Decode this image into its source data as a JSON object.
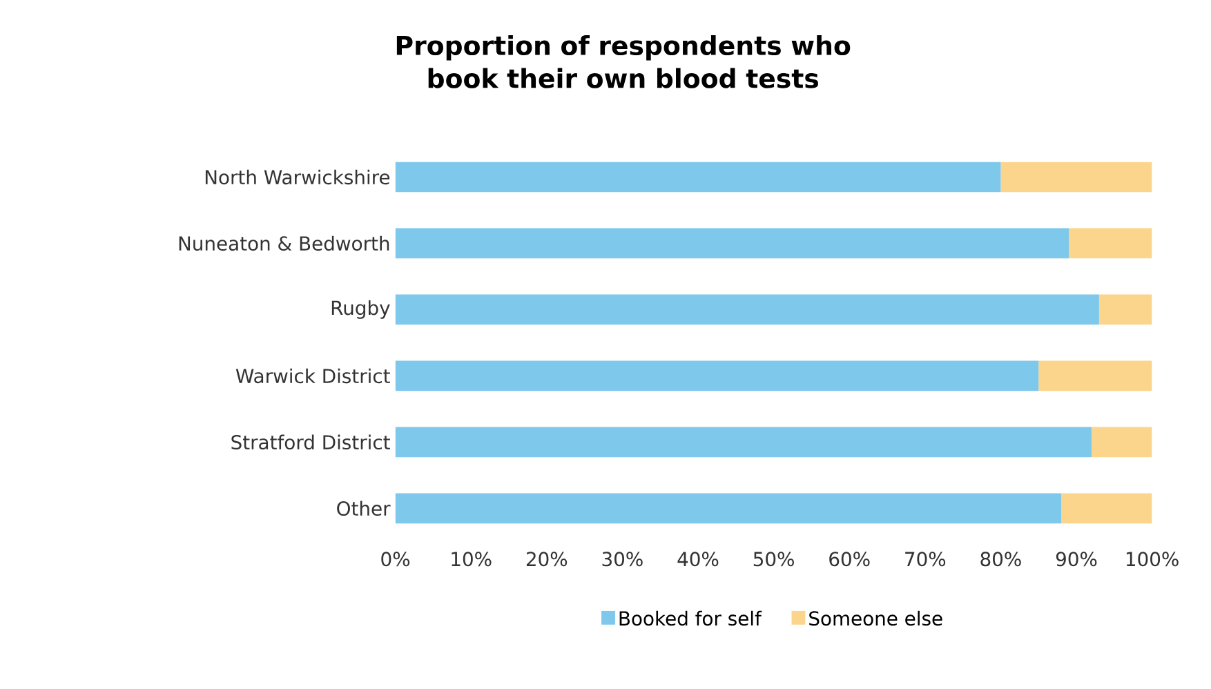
{
  "chart_data": {
    "type": "bar",
    "orientation": "horizontal",
    "stacked": true,
    "title": "Proportion of respondents who book their own blood tests",
    "categories": [
      "North Warwickshire",
      "Nuneaton & Bedworth",
      "Rugby",
      "Warwick District",
      "Stratford District",
      "Other"
    ],
    "series": [
      {
        "name": "Booked for self",
        "color": "#7ec8ec",
        "values": [
          80,
          89,
          93,
          85,
          92,
          88
        ]
      },
      {
        "name": "Someone else",
        "color": "#fcd58c",
        "values": [
          20,
          11,
          7,
          15,
          8,
          12
        ]
      }
    ],
    "xlim": [
      0,
      100
    ],
    "xticks": [
      {
        "value": 0,
        "label": "0%"
      },
      {
        "value": 10,
        "label": "10%"
      },
      {
        "value": 20,
        "label": "20%"
      },
      {
        "value": 30,
        "label": "30%"
      },
      {
        "value": 40,
        "label": "40%"
      },
      {
        "value": 50,
        "label": "50%"
      },
      {
        "value": 60,
        "label": "60%"
      },
      {
        "value": 70,
        "label": "70%"
      },
      {
        "value": 80,
        "label": "80%"
      },
      {
        "value": 90,
        "label": "90%"
      },
      {
        "value": 100,
        "label": "100%"
      }
    ],
    "legend": "bottom"
  }
}
